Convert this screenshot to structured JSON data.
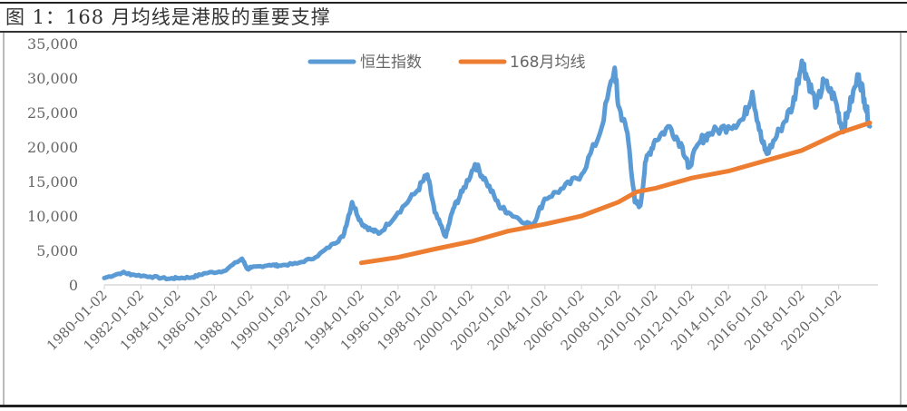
{
  "figure": {
    "caption": "图 1：168 月均线是港股的重要支撑"
  },
  "chart_data": {
    "type": "line",
    "title": "图 1：168 月均线是港股的重要支撑",
    "xlabel": "",
    "ylabel": "",
    "ylim": [
      0,
      35000
    ],
    "yticks": [
      "0",
      "5,000",
      "10,000",
      "15,000",
      "20,000",
      "25,000",
      "30,000",
      "35,000"
    ],
    "xticks": [
      "1980-01-02",
      "1982-01-02",
      "1984-01-02",
      "1986-01-02",
      "1988-01-02",
      "1990-01-02",
      "1992-01-02",
      "1994-01-02",
      "1996-01-02",
      "1998-01-02",
      "2000-01-02",
      "2002-01-02",
      "2004-01-02",
      "2006-01-02",
      "2008-01-02",
      "2010-01-02",
      "2012-01-02",
      "2014-01-02",
      "2016-01-02",
      "2018-01-02",
      "2020-01-02"
    ],
    "grid": false,
    "legend_position": "top-center",
    "series": [
      {
        "name": "恒生指数",
        "color": "#5b9bd5",
        "x": [
          1980.0,
          1981.0,
          1981.5,
          1982.5,
          1983.5,
          1984.0,
          1984.8,
          1985.5,
          1986.5,
          1987.5,
          1987.8,
          1988.0,
          1989.0,
          1989.5,
          1990.5,
          1991.5,
          1992.5,
          1993.0,
          1993.5,
          1994.0,
          1994.5,
          1995.0,
          1996.0,
          1997.0,
          1997.6,
          1998.0,
          1998.6,
          1999.0,
          1999.5,
          2000.2,
          2000.8,
          2001.5,
          2002.0,
          2003.0,
          2003.3,
          2004.0,
          2005.0,
          2006.0,
          2007.0,
          2007.8,
          2008.0,
          2008.5,
          2008.9,
          2009.2,
          2009.5,
          2010.0,
          2010.8,
          2011.5,
          2011.8,
          2012.5,
          2013.0,
          2014.0,
          2014.8,
          2015.3,
          2015.8,
          2016.1,
          2016.8,
          2017.5,
          2018.0,
          2018.3,
          2018.8,
          2019.2,
          2019.8,
          2020.2,
          2020.5,
          2021.1,
          2021.4,
          2021.7
        ],
        "values": [
          1000,
          1800,
          1500,
          1200,
          900,
          1000,
          1100,
          1700,
          2000,
          3800,
          2300,
          2500,
          2900,
          2800,
          3100,
          4000,
          6000,
          7000,
          12000,
          9000,
          8000,
          7500,
          10500,
          13500,
          16000,
          10500,
          7000,
          11000,
          13500,
          17500,
          15000,
          11500,
          10500,
          9000,
          8500,
          12500,
          14000,
          16000,
          22000,
          31500,
          26000,
          22000,
          12000,
          11500,
          18000,
          21000,
          23000,
          20000,
          17000,
          21000,
          22000,
          23000,
          24000,
          28000,
          21000,
          19000,
          22500,
          26000,
          32500,
          30000,
          26000,
          29500,
          27000,
          22500,
          25000,
          30500,
          27000,
          23000
        ]
      },
      {
        "name": "168月均线",
        "color": "#ed7d31",
        "x": [
          1994.0,
          1996.0,
          1998.0,
          2000.0,
          2002.0,
          2004.0,
          2006.0,
          2008.0,
          2009.0,
          2010.0,
          2012.0,
          2014.0,
          2016.0,
          2018.0,
          2020.0,
          2021.7
        ],
        "values": [
          3200,
          4000,
          5200,
          6300,
          7800,
          8800,
          10000,
          12000,
          13500,
          14000,
          15500,
          16500,
          18000,
          19500,
          22000,
          23500
        ]
      }
    ]
  },
  "legend": {
    "items": [
      {
        "label": "恒生指数",
        "color": "#5b9bd5"
      },
      {
        "label": "168月均线",
        "color": "#ed7d31"
      }
    ]
  }
}
